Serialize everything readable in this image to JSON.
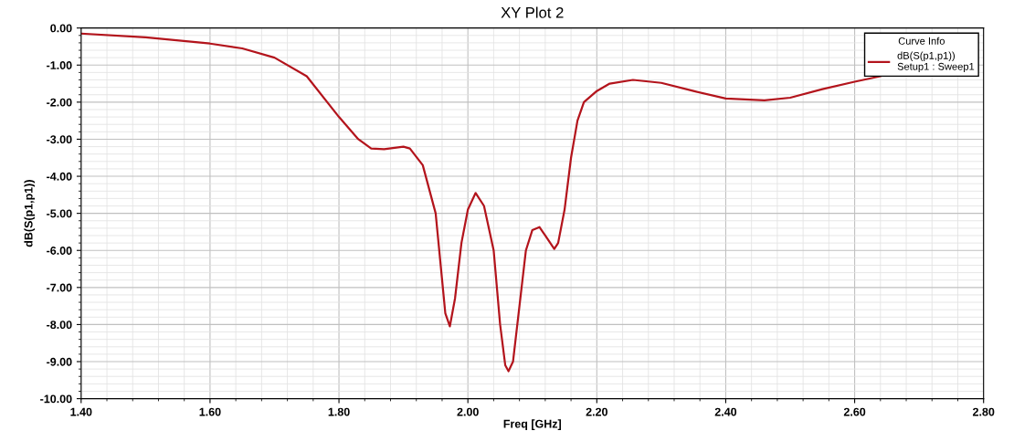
{
  "chart_data": {
    "type": "line",
    "title": "XY Plot 2",
    "xlabel": "Freq [GHz]",
    "ylabel": "dB(S(p1,p1))",
    "legend_title": "Curve Info",
    "legend": "top right",
    "grid": true,
    "marker": "none",
    "line_style": "solid",
    "xlim": [
      1.4,
      2.8
    ],
    "ylim": [
      -10,
      0
    ],
    "xticks": [
      {
        "value": 1.4,
        "label": "1.40"
      },
      {
        "value": 1.6,
        "label": "1.60"
      },
      {
        "value": 1.8,
        "label": "1.80"
      },
      {
        "value": 2.0,
        "label": "2.00"
      },
      {
        "value": 2.2,
        "label": "2.20"
      },
      {
        "value": 2.4,
        "label": "2.40"
      },
      {
        "value": 2.6,
        "label": "2.60"
      },
      {
        "value": 2.8,
        "label": "2.80"
      }
    ],
    "yticks": [
      {
        "value": 0,
        "label": "0.00"
      },
      {
        "value": -1,
        "label": "-1.00"
      },
      {
        "value": -2,
        "label": "-2.00"
      },
      {
        "value": -3,
        "label": "-3.00"
      },
      {
        "value": -4,
        "label": "-4.00"
      },
      {
        "value": -5,
        "label": "-5.00"
      },
      {
        "value": -6,
        "label": "-6.00"
      },
      {
        "value": -7,
        "label": "-7.00"
      },
      {
        "value": -8,
        "label": "-8.00"
      },
      {
        "value": -9,
        "label": "-9.00"
      },
      {
        "value": -10,
        "label": "-10.00"
      }
    ],
    "x": [
      1.4,
      1.5,
      1.6,
      1.65,
      1.7,
      1.75,
      1.8,
      1.83,
      1.85,
      1.87,
      1.9,
      1.91,
      1.93,
      1.95,
      1.96,
      1.965,
      1.972,
      1.98,
      1.99,
      2.0,
      2.012,
      2.025,
      2.04,
      2.05,
      2.058,
      2.063,
      2.07,
      2.08,
      2.09,
      2.1,
      2.111,
      2.12,
      2.134,
      2.14,
      2.15,
      2.16,
      2.17,
      2.18,
      2.2,
      2.22,
      2.256,
      2.3,
      2.35,
      2.4,
      2.46,
      2.5,
      2.55,
      2.6,
      2.64
    ],
    "series": [
      {
        "name": "dB(S(p1,p1))\nSetup1 : Sweep1",
        "color": "#b3141c",
        "values": [
          -0.15,
          -0.25,
          -0.42,
          -0.55,
          -0.8,
          -1.3,
          -2.4,
          -3.0,
          -3.25,
          -3.27,
          -3.2,
          -3.25,
          -3.7,
          -5.0,
          -6.8,
          -7.7,
          -8.05,
          -7.3,
          -5.8,
          -4.9,
          -4.45,
          -4.8,
          -6.0,
          -8.0,
          -9.1,
          -9.26,
          -9.0,
          -7.5,
          -6.0,
          -5.45,
          -5.37,
          -5.6,
          -5.96,
          -5.8,
          -4.9,
          -3.5,
          -2.5,
          -2.0,
          -1.7,
          -1.5,
          -1.4,
          -1.48,
          -1.7,
          -1.9,
          -1.95,
          -1.88,
          -1.65,
          -1.45,
          -1.3
        ]
      }
    ]
  }
}
